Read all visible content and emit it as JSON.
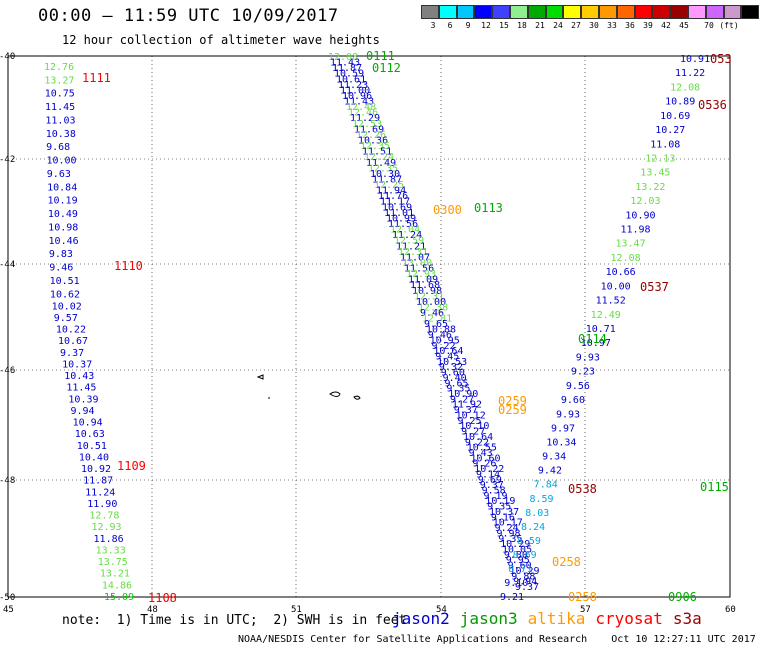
{
  "header": {
    "title": "00:00 – 11:59 UTC 10/09/2017",
    "subtitle": "12 hour collection of altimeter wave heights"
  },
  "legend": {
    "colors": [
      "#808080",
      "#00ffff",
      "#00c8ff",
      "#0000ff",
      "#4040ff",
      "#90ee90",
      "#00aa00",
      "#00dd00",
      "#ffff00",
      "#ffcc00",
      "#ff9900",
      "#ff6600",
      "#ff0000",
      "#cc0000",
      "#990000",
      "#ff99ff",
      "#cc66ff",
      "#cc99cc",
      "#000000"
    ],
    "labels": [
      "3",
      "6",
      "9",
      "12",
      "15",
      "18",
      "21",
      "24",
      "27",
      "30",
      "33",
      "36",
      "39",
      "42",
      "45",
      "70"
    ],
    "unit": "(ft)"
  },
  "axes": {
    "lat_labels": [
      "-40",
      "-42",
      "-44",
      "-46",
      "-48",
      "-50"
    ],
    "lon_labels": [
      "45",
      "48",
      "51",
      "54",
      "57",
      "60"
    ]
  },
  "time_labels": [
    {
      "t": "1111",
      "color": "#ff0000"
    },
    {
      "t": "1110",
      "color": "#ff0000"
    },
    {
      "t": "1109",
      "color": "#ff0000"
    },
    {
      "t": "1108",
      "color": "#ff0000"
    },
    {
      "t": "0111",
      "color": "#00aa00"
    },
    {
      "t": "0112",
      "color": "#00aa00"
    },
    {
      "t": "0113",
      "color": "#00aa00"
    },
    {
      "t": "0114",
      "color": "#00aa00"
    },
    {
      "t": "0115",
      "color": "#00aa00"
    },
    {
      "t": "0906",
      "color": "#00aa00"
    },
    {
      "t": "0300",
      "color": "#ff9900"
    },
    {
      "t": "0259",
      "color": "#ff9900"
    },
    {
      "t": "0259",
      "color": "#ff9900"
    },
    {
      "t": "0258",
      "color": "#ff9900"
    },
    {
      "t": "0258",
      "color": "#ff9900"
    },
    {
      "t": "053",
      "color": "#990000"
    },
    {
      "t": "0536",
      "color": "#990000"
    },
    {
      "t": "0537",
      "color": "#990000"
    },
    {
      "t": "0538",
      "color": "#990000"
    }
  ],
  "tracks": {
    "t1": [
      "12.76",
      "13.27",
      "10.75",
      "11.45",
      "11.03",
      "10.38",
      "9.68",
      "10.00",
      "9.63",
      "10.84",
      "10.19",
      "10.49",
      "10.98",
      "10.46",
      "9.83",
      "9.46",
      "10.51",
      "10.62",
      "10.02",
      "9.57",
      "10.22",
      "10.67",
      "9.37",
      "10.37",
      "10.43",
      "11.45",
      "10.39",
      "9.94",
      "10.94",
      "10.63",
      "10.51",
      "10.40",
      "10.92",
      "11.87",
      "11.24",
      "11.90",
      "12.78",
      "12.93",
      "11.86",
      "13.33",
      "13.75",
      "13.21",
      "14.86",
      "15.09"
    ],
    "t2": [
      "12.08",
      "11.43",
      "11.87",
      "10.59",
      "10.61",
      "11.23",
      "11.00",
      "10.96",
      "11.43",
      "12.48",
      "12.46",
      "11.29",
      "12.53",
      "11.69",
      "12.26",
      "10.36",
      "12.35",
      "11.51",
      "12.24",
      "11.49",
      "12.35",
      "10.30",
      "11.87",
      "12.25",
      "11.94",
      "11.76",
      "11.17",
      "10.69",
      "11.01",
      "10.99",
      "11.56",
      "12.04",
      "11.24",
      "12.59",
      "11.21",
      "12.31",
      "11.07",
      "13.00",
      "11.56",
      "12.93",
      "11.09",
      "11.68",
      "10.98",
      "12.31",
      "10.00",
      "12.38",
      "9.46",
      "12.81",
      "9.65",
      "10.88",
      "9.46",
      "10.95",
      "9.22",
      "10.64",
      "9.45",
      "10.53",
      "9.32",
      "9.60",
      "9.40",
      "9.65",
      "9.35",
      "10.90",
      "9.27",
      "11.92",
      "9.37",
      "10.12",
      "9.25",
      "10.10",
      "9.27",
      "10.64",
      "9.22",
      "10.55",
      "9.43",
      "10.60",
      "9.26",
      "10.22",
      "9.14",
      "9.69",
      "9.37",
      "9.58",
      "9.19",
      "10.19",
      "9.35",
      "10.37",
      "9.16",
      "10.17",
      "9.24",
      "9.98",
      "9.35",
      "10.29",
      "10.05",
      "9.80",
      "9.95",
      "9.60",
      "10.29",
      "9.88",
      "9.94",
      "9.37"
    ],
    "t3": [
      "9.21",
      "9.10",
      "8.71",
      "8.69",
      "8.59",
      "8.24",
      "8.03",
      "8.59",
      "7.84",
      "9.42",
      "9.34",
      "10.34",
      "9.97",
      "9.93",
      "9.60",
      "9.56",
      "9.23",
      "9.93",
      "10.97",
      "10.71",
      "12.49",
      "11.52",
      "10.00",
      "10.66",
      "12.08",
      "13.47",
      "11.98",
      "10.90",
      "12.03",
      "13.22",
      "13.45",
      "12.13",
      "11.08",
      "10.27",
      "10.69",
      "10.89",
      "12.08",
      "11.22",
      "10.91"
    ]
  },
  "footer": {
    "note": "note:  1) Time is in UTC;  2) SWH is in feet",
    "satellites": [
      {
        "name": "jason2",
        "color": "#0000cc"
      },
      {
        "name": "jason3",
        "color": "#009900"
      },
      {
        "name": "altika",
        "color": "#ff9900"
      },
      {
        "name": "cryosat",
        "color": "#ff0000"
      },
      {
        "name": "s3a",
        "color": "#990000"
      }
    ],
    "credit": "NOAA/NESDIS Center for Satellite Applications and Research    Oct 10 12:27:11 UTC 2017"
  }
}
